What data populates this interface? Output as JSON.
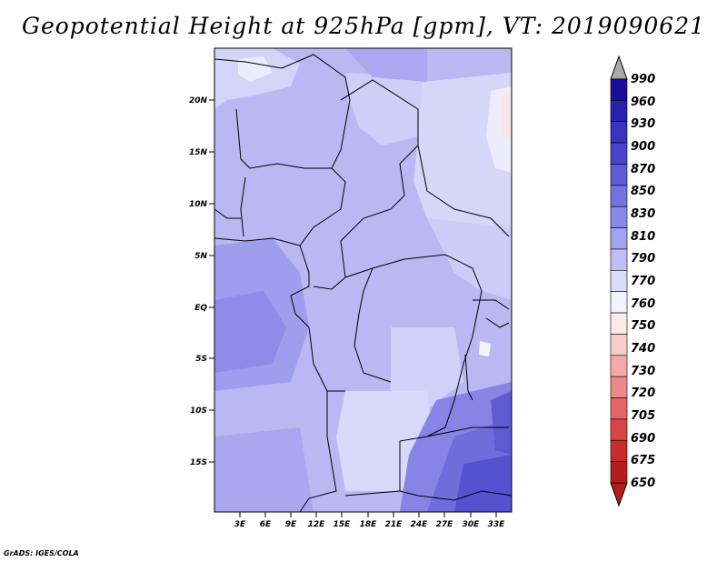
{
  "title": "Geopotential Height at 925hPa [gpm], VT: 2019090621",
  "credit": "GrADS: IGES/COLA",
  "map": {
    "lat_labels": [
      "20N",
      "15N",
      "10N",
      "5N",
      "EQ",
      "5S",
      "10S",
      "15S"
    ],
    "lon_labels": [
      "3E",
      "6E",
      "9E",
      "12E",
      "15E",
      "18E",
      "21E",
      "24E",
      "27E",
      "30E",
      "33E"
    ]
  },
  "colorbar": {
    "levels": [
      "990",
      "960",
      "930",
      "900",
      "870",
      "850",
      "830",
      "810",
      "790",
      "770",
      "760",
      "750",
      "740",
      "730",
      "720",
      "705",
      "690",
      "675",
      "650"
    ],
    "colors": [
      "#1a0d9c",
      "#2a1fae",
      "#3b32bf",
      "#4c45cc",
      "#5f5ad8",
      "#7471e0",
      "#8a88e8",
      "#a3a2ee",
      "#bfbef4",
      "#dcdcfa",
      "#f2f2ff",
      "#fde9e9",
      "#f9cccc",
      "#f3a9a9",
      "#ec8888",
      "#e36565",
      "#d84545",
      "#c92c2c",
      "#b51c1c"
    ],
    "top_arrow_color": "#aaaaaa",
    "bottom_arrow_color": "#b51c1c"
  }
}
